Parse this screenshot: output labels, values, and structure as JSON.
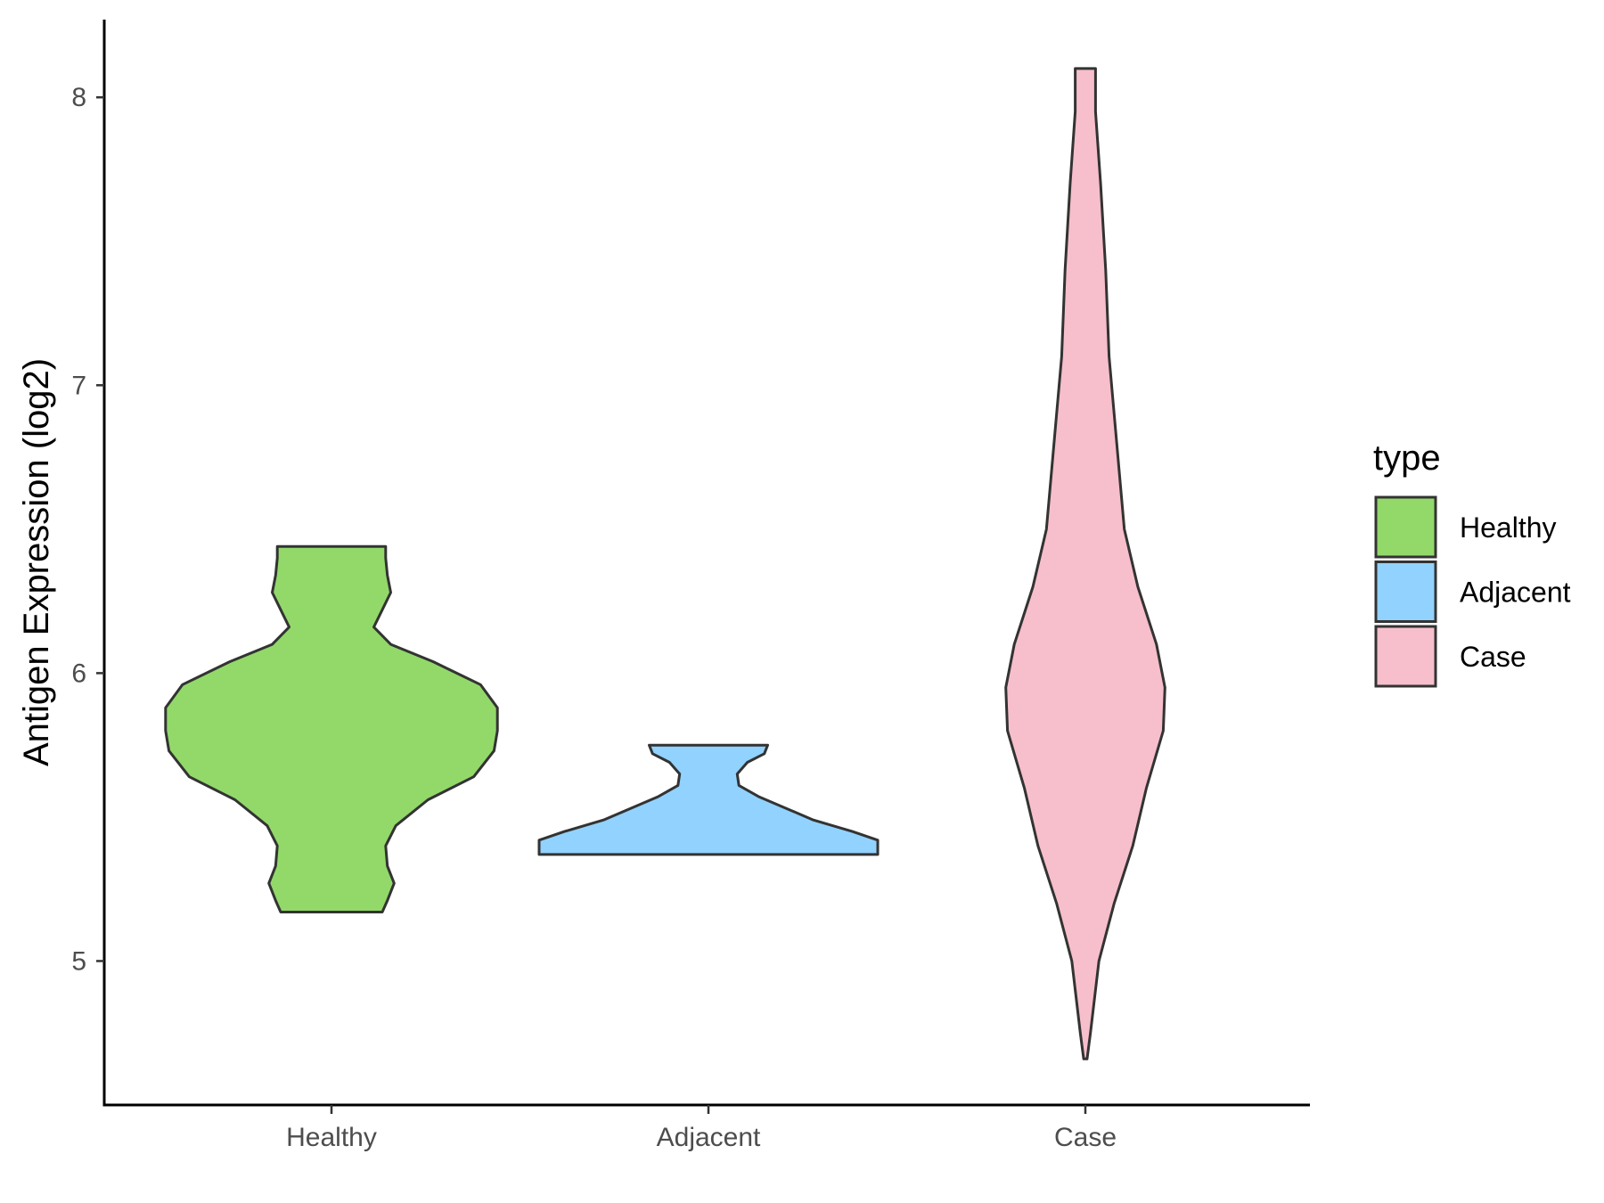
{
  "chart_data": {
    "type": "violin",
    "title": "",
    "xlabel": "",
    "ylabel": "Antigen Expression (log2)",
    "categories": [
      "Healthy",
      "Adjacent",
      "Case"
    ],
    "yticks": [
      5,
      6,
      7,
      8
    ],
    "ylim": [
      4.5,
      8.27
    ],
    "grid": false,
    "legend": {
      "title": "type",
      "position": "right",
      "entries": [
        "Healthy",
        "Adjacent",
        "Case"
      ]
    },
    "colors": {
      "Healthy": "#92D96A",
      "Adjacent": "#92D2FE",
      "Case": "#F6BFCB",
      "outline": "#333333"
    },
    "series": [
      {
        "category": "Healthy",
        "min": 5.17,
        "max": 6.44,
        "density": [
          [
            5.17,
            0.3
          ],
          [
            5.21,
            0.33
          ],
          [
            5.27,
            0.37
          ],
          [
            5.33,
            0.33
          ],
          [
            5.4,
            0.32
          ],
          [
            5.47,
            0.38
          ],
          [
            5.56,
            0.57
          ],
          [
            5.64,
            0.84
          ],
          [
            5.73,
            0.96
          ],
          [
            5.8,
            0.98
          ],
          [
            5.88,
            0.98
          ],
          [
            5.96,
            0.88
          ],
          [
            6.04,
            0.6
          ],
          [
            6.1,
            0.35
          ],
          [
            6.16,
            0.25
          ],
          [
            6.22,
            0.3
          ],
          [
            6.28,
            0.35
          ],
          [
            6.34,
            0.33
          ],
          [
            6.4,
            0.32
          ],
          [
            6.44,
            0.32
          ]
        ]
      },
      {
        "category": "Adjacent",
        "min": 5.37,
        "max": 5.75,
        "density": [
          [
            5.37,
            1.0
          ],
          [
            5.4,
            1.0
          ],
          [
            5.42,
            1.0
          ],
          [
            5.45,
            0.85
          ],
          [
            5.49,
            0.62
          ],
          [
            5.53,
            0.46
          ],
          [
            5.57,
            0.3
          ],
          [
            5.61,
            0.18
          ],
          [
            5.65,
            0.17
          ],
          [
            5.69,
            0.23
          ],
          [
            5.72,
            0.33
          ],
          [
            5.75,
            0.35
          ]
        ]
      },
      {
        "category": "Case",
        "min": 4.66,
        "max": 8.1,
        "density": [
          [
            4.66,
            0.01
          ],
          [
            4.75,
            0.03
          ],
          [
            4.85,
            0.05
          ],
          [
            5.0,
            0.08
          ],
          [
            5.2,
            0.17
          ],
          [
            5.4,
            0.28
          ],
          [
            5.6,
            0.36
          ],
          [
            5.8,
            0.46
          ],
          [
            5.95,
            0.47
          ],
          [
            6.1,
            0.42
          ],
          [
            6.3,
            0.31
          ],
          [
            6.5,
            0.23
          ],
          [
            6.7,
            0.2
          ],
          [
            6.9,
            0.17
          ],
          [
            7.1,
            0.14
          ],
          [
            7.4,
            0.12
          ],
          [
            7.7,
            0.09
          ],
          [
            7.95,
            0.06
          ],
          [
            8.1,
            0.06
          ]
        ]
      }
    ]
  }
}
